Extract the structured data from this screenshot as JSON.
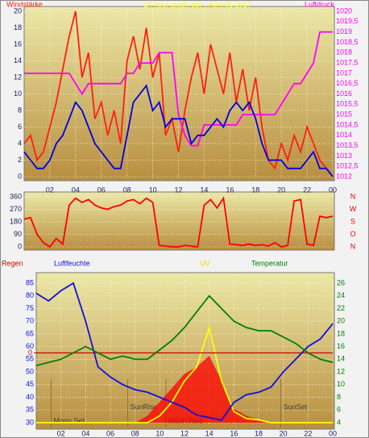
{
  "chart_data": [
    {
      "type": "line",
      "title": "24 hour graph day : April 01 2017",
      "ylabel": "Windstärke",
      "y2label": "Luftdruck",
      "grid": true,
      "x": [
        0,
        0.5,
        1,
        1.5,
        2,
        2.5,
        3,
        3.5,
        4,
        4.5,
        5,
        5.5,
        6,
        6.5,
        7,
        7.5,
        8,
        8.5,
        9,
        9.5,
        10,
        10.5,
        11,
        11.5,
        12,
        12.5,
        13,
        13.5,
        14,
        14.5,
        15,
        15.5,
        16,
        16.5,
        17,
        17.5,
        18,
        18.5,
        19,
        19.5,
        20,
        20.5,
        21,
        21.5,
        22,
        22.5,
        23,
        23.5,
        24
      ],
      "xlim": [
        0,
        24
      ],
      "xticks": [
        {
          "value": 2,
          "label": "02"
        },
        {
          "value": 4,
          "label": "04"
        },
        {
          "value": 6,
          "label": "06"
        },
        {
          "value": 8,
          "label": "08"
        },
        10,
        12,
        14,
        16,
        18,
        20,
        22,
        {
          "value": 24,
          "label": "00"
        }
      ],
      "ylim": [
        0,
        20
      ],
      "yticks": [
        0,
        2,
        4,
        6,
        8,
        10,
        12,
        14,
        16,
        18,
        20
      ],
      "y2lim": [
        1012,
        1020
      ],
      "y2ticks": [
        1012,
        {
          "value": 1012.5,
          "label": "1012,5"
        },
        1013,
        {
          "value": 1013.5,
          "label": "1013,5"
        },
        1014,
        {
          "value": 1014.5,
          "label": "1014,5"
        },
        1015,
        {
          "value": 1015.5,
          "label": "1015,5"
        },
        1016,
        {
          "value": 1016.5,
          "label": "1016,5"
        },
        1017,
        {
          "value": 1017.5,
          "label": "1017,5"
        },
        1018,
        {
          "value": 1018.5,
          "label": "1018,5"
        },
        1019,
        {
          "value": 1019.5,
          "label": "1019,5"
        },
        1020
      ],
      "series": [
        {
          "color": "#ff2010",
          "axis": "y",
          "values": [
            4,
            5,
            2,
            3,
            6,
            9,
            13,
            17,
            20,
            12,
            15,
            7,
            9,
            5,
            8,
            4,
            14,
            17,
            13,
            18,
            12,
            15,
            5,
            7,
            3,
            8,
            12,
            15,
            10,
            16,
            13,
            10,
            15,
            9,
            13,
            8,
            12,
            6,
            2,
            1,
            4,
            2,
            5,
            3,
            6,
            4,
            2,
            1,
            0
          ]
        },
        {
          "color": "#ff00ff",
          "axis": "y2",
          "values": [
            1017,
            1017,
            1017,
            1017,
            1017,
            1017,
            1017,
            1017,
            1016.5,
            1016,
            1016.5,
            1016.5,
            1016.5,
            1016.5,
            1016.5,
            1016.5,
            1017,
            1017,
            1017.5,
            1017.5,
            1017.5,
            1018,
            1018,
            1018,
            1015,
            1014,
            1013.5,
            1013.5,
            1014.5,
            1014.5,
            1014.5,
            1014.5,
            1014.5,
            1014.5,
            1015,
            1015,
            1015,
            1015,
            1015,
            1015,
            1015.5,
            1016,
            1016.5,
            1016.5,
            1017,
            1017.5,
            1019,
            1019,
            1019
          ]
        },
        {
          "color": "#0000e0",
          "axis": "y",
          "values": [
            3,
            2,
            1,
            1,
            2,
            4,
            5,
            7,
            9,
            8,
            6,
            4,
            3,
            2,
            1,
            1,
            5,
            9,
            10,
            11,
            8,
            9,
            6,
            7,
            7,
            7,
            4,
            5,
            5,
            6,
            7,
            6,
            8,
            9,
            8,
            9,
            7,
            4,
            2,
            2,
            2,
            1,
            1,
            1,
            2,
            3,
            1,
            1,
            0
          ]
        }
      ]
    },
    {
      "type": "line",
      "grid": true,
      "x": [
        0,
        0.5,
        1,
        1.5,
        2,
        2.5,
        3,
        3.5,
        4,
        4.5,
        5,
        5.5,
        6,
        6.5,
        7,
        7.5,
        8,
        8.5,
        9,
        9.5,
        10,
        10.5,
        11,
        11.5,
        12,
        12.5,
        13,
        13.5,
        14,
        14.5,
        15,
        15.5,
        16,
        16.5,
        17,
        17.5,
        18,
        18.5,
        19,
        19.5,
        20,
        20.5,
        21,
        21.5,
        22,
        22.5,
        23,
        23.5,
        24
      ],
      "xlim": [
        0,
        24
      ],
      "ylim": [
        0,
        360
      ],
      "yticks": [
        0,
        90,
        180,
        270,
        360
      ],
      "compass_labels": [
        "N",
        "W",
        "S",
        "O",
        "N"
      ],
      "series": [
        {
          "color": "#ff0000",
          "axis": "y",
          "values": [
            200,
            210,
            90,
            30,
            0,
            60,
            20,
            300,
            350,
            320,
            340,
            300,
            280,
            270,
            290,
            300,
            330,
            340,
            310,
            350,
            320,
            10,
            5,
            0,
            0,
            10,
            5,
            0,
            300,
            340,
            280,
            350,
            20,
            15,
            10,
            20,
            10,
            15,
            5,
            30,
            0,
            10,
            330,
            340,
            20,
            10,
            220,
            210,
            220
          ]
        }
      ]
    },
    {
      "type": "line",
      "grid": true,
      "x": [
        0,
        1,
        2,
        3,
        4,
        5,
        6,
        7,
        8,
        9,
        10,
        11,
        12,
        13,
        14,
        15,
        16,
        17,
        18,
        19,
        20,
        21,
        22,
        23,
        24
      ],
      "xlim": [
        0,
        24
      ],
      "xticks": [
        {
          "value": 2,
          "label": "02"
        },
        {
          "value": 4,
          "label": "04"
        },
        {
          "value": 6,
          "label": "06"
        },
        {
          "value": 8,
          "label": "08"
        },
        10,
        12,
        14,
        16,
        18,
        20,
        22,
        {
          "value": 24,
          "label": "00"
        }
      ],
      "ylim": [
        30,
        85
      ],
      "yticks": [
        30,
        35,
        40,
        45,
        50,
        55,
        60,
        65,
        70,
        75,
        80,
        85
      ],
      "y2lim": [
        4,
        26
      ],
      "y2ticks": [
        4,
        6,
        8,
        10,
        12,
        14,
        16,
        18,
        20,
        22,
        24,
        26
      ],
      "y3lim": [
        -1,
        1
      ],
      "y3ticks": [
        0
      ],
      "y4lim": [
        0,
        10
      ],
      "annotations": [
        {
          "text": "Moon Set",
          "x": 1.2
        },
        {
          "text": "SunRise",
          "x": 7.4
        },
        {
          "text": "Moon Rise",
          "x": 10.5
        },
        {
          "text": "SunSet",
          "x": 19.8
        }
      ],
      "series": [
        {
          "color": "#ff0000",
          "axis": "y4",
          "fill": true,
          "values": [
            0,
            0,
            0,
            0,
            0,
            0,
            0,
            0,
            0,
            0.5,
            1.5,
            2.5,
            3.5,
            4,
            4.8,
            3,
            1,
            0.5,
            0.2,
            0,
            0,
            0,
            0,
            0,
            0
          ]
        },
        {
          "name": "UV",
          "color": "#ffff00",
          "axis": "y4",
          "values": [
            0,
            0,
            0,
            0,
            0,
            0,
            0,
            0,
            0,
            0,
            0.5,
            1.5,
            3,
            4,
            6.8,
            3,
            0.8,
            0.3,
            0.2,
            0,
            0,
            0,
            0,
            0,
            0
          ]
        },
        {
          "name": "Regen",
          "color": "#d00000",
          "axis": "y3",
          "values": [
            0,
            0,
            0,
            0,
            0,
            0,
            0,
            0,
            0,
            0,
            0,
            0,
            0,
            0,
            0,
            0,
            0,
            0,
            0,
            0,
            0,
            0,
            0,
            0,
            0
          ]
        },
        {
          "name": "Luftfeuchte",
          "color": "#1010e0",
          "axis": "y",
          "values": [
            81,
            78,
            82,
            85,
            70,
            52,
            48,
            45,
            43,
            42,
            40,
            38,
            36,
            33,
            32,
            31,
            38,
            41,
            42,
            44,
            50,
            55,
            60,
            63,
            69
          ]
        },
        {
          "name": "Temperatur",
          "color": "#008000",
          "axis": "y2",
          "values": [
            13,
            13.5,
            14,
            15,
            16,
            15,
            14,
            14.5,
            14,
            14,
            15.5,
            17,
            19,
            21.5,
            24,
            22,
            20,
            19,
            18.5,
            18.5,
            17.5,
            16.5,
            15,
            14,
            13.5
          ]
        }
      ]
    }
  ]
}
